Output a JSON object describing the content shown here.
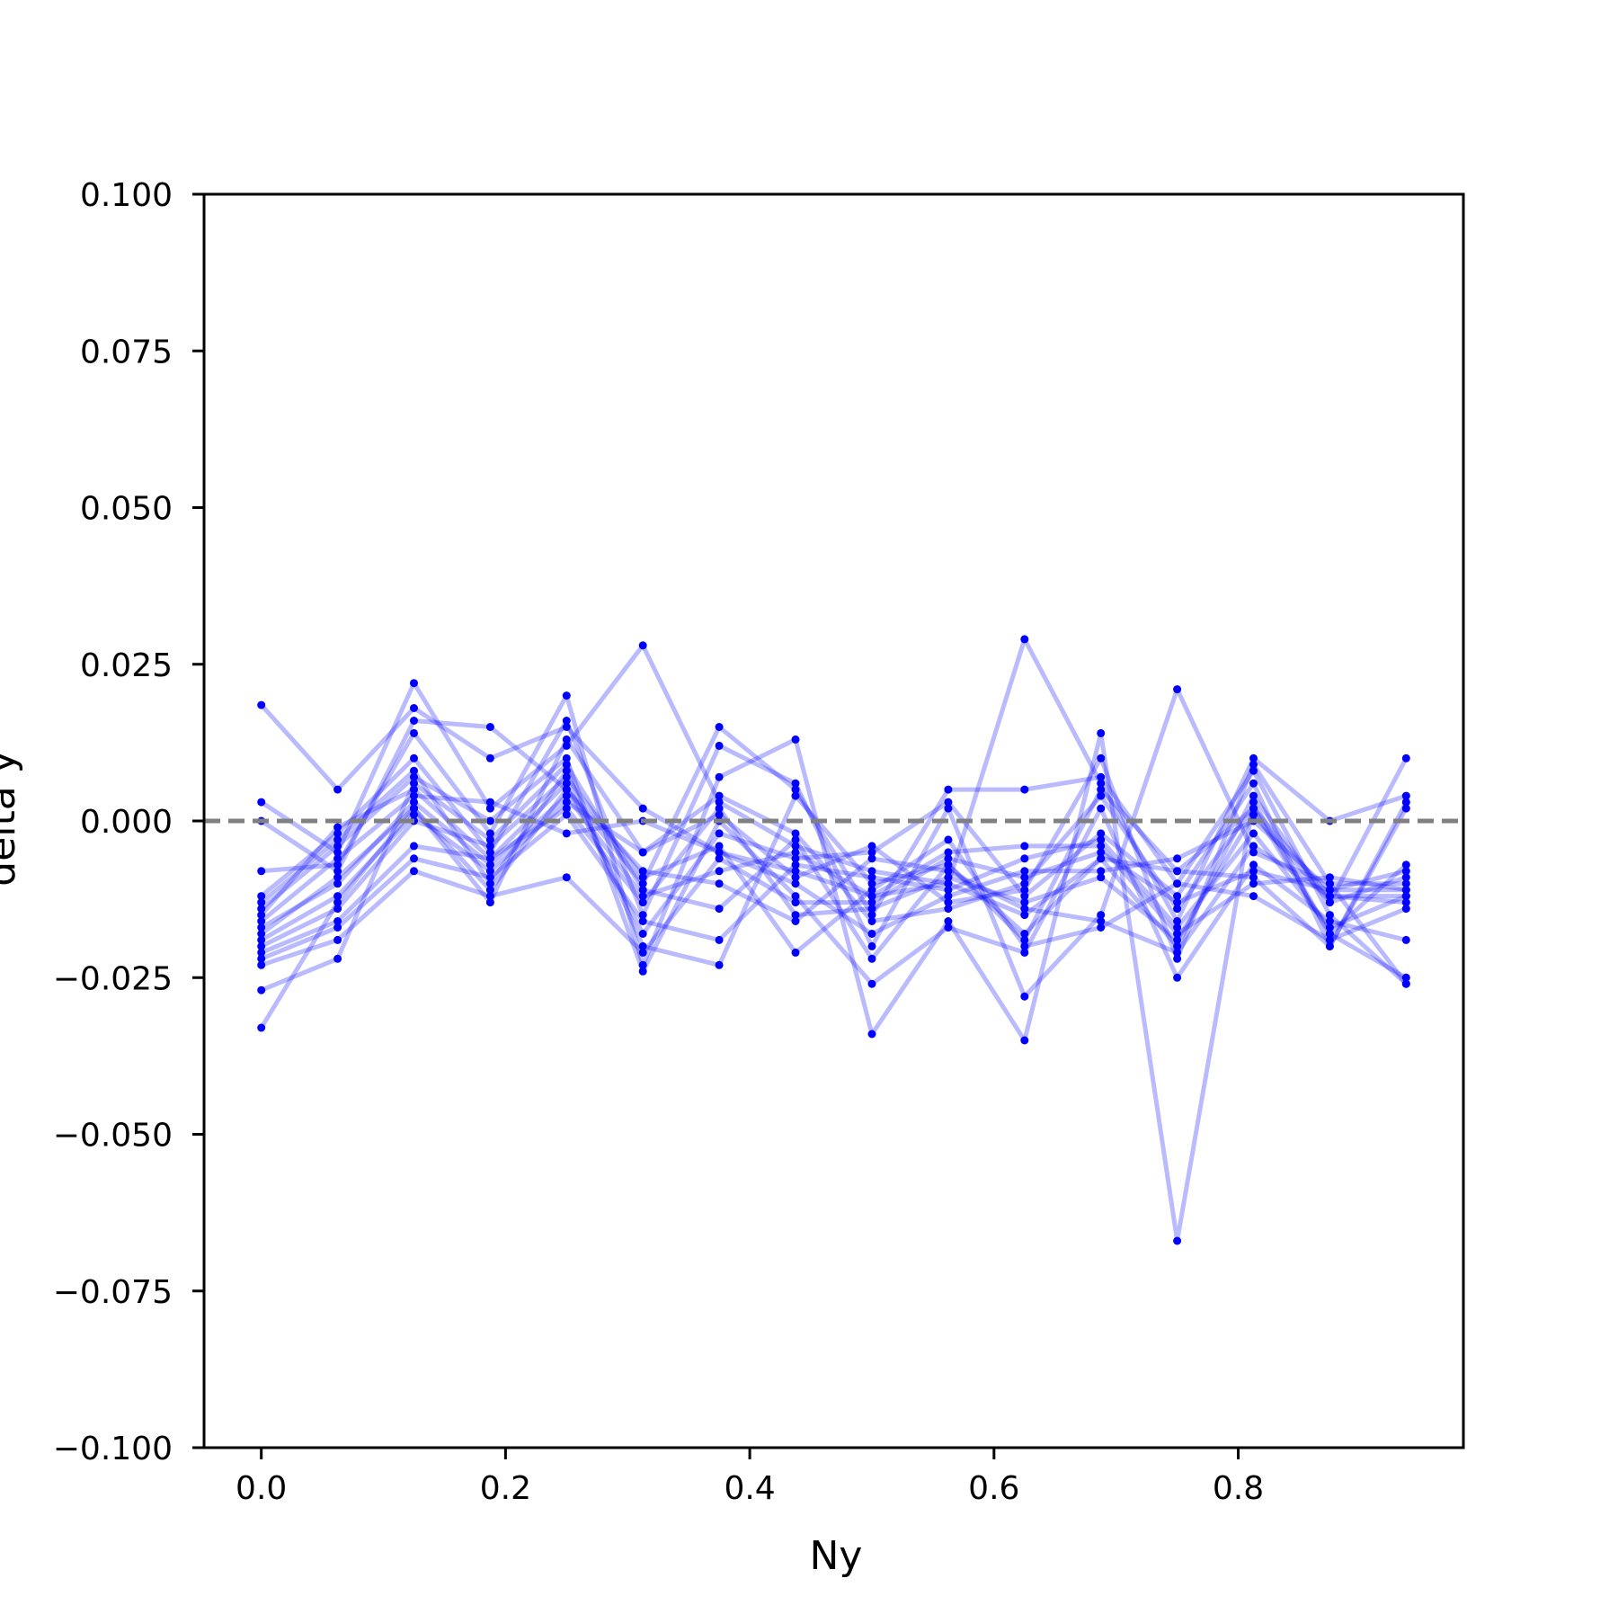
{
  "chart_data": {
    "type": "line",
    "title": "",
    "xlabel": "Ny",
    "ylabel": "delta y",
    "xlim": [
      -0.046875,
      0.984375
    ],
    "ylim": [
      -0.1,
      0.1
    ],
    "x_ticks": [
      0.0,
      0.2,
      0.4,
      0.6,
      0.8
    ],
    "x_tick_labels": [
      "0.0",
      "0.2",
      "0.4",
      "0.6",
      "0.8"
    ],
    "y_ticks": [
      0.1,
      0.075,
      0.05,
      0.025,
      0.0,
      -0.025,
      -0.05,
      -0.075,
      -0.1
    ],
    "y_tick_labels": [
      "0.100",
      "0.075",
      "0.050",
      "0.025",
      "0.000",
      "−0.025",
      "−0.050",
      "−0.075",
      "−0.100"
    ],
    "grid": false,
    "legend": "none",
    "reference_line": {
      "y": 0.0,
      "style": "dashed",
      "color": "#808080"
    },
    "series_color": "#0000ff",
    "x": [
      0.0,
      0.0625,
      0.125,
      0.1875,
      0.25,
      0.3125,
      0.375,
      0.4375,
      0.5,
      0.5625,
      0.625,
      0.6875,
      0.75,
      0.8125,
      0.875,
      0.9375
    ],
    "series": [
      {
        "values": [
          0.0185,
          0.005,
          0.018,
          0.01,
          0.015,
          0.002,
          -0.005,
          -0.008,
          -0.012,
          -0.01,
          -0.015,
          -0.006,
          -0.008,
          0.002,
          -0.012,
          -0.013
        ]
      },
      {
        "values": [
          0.003,
          -0.005,
          0.022,
          0.002,
          0.012,
          0.028,
          0.003,
          -0.004,
          -0.008,
          -0.01,
          0.029,
          0.006,
          -0.016,
          0.01,
          0.0,
          0.004
        ]
      },
      {
        "values": [
          0.0,
          -0.008,
          0.016,
          0.015,
          0.005,
          -0.01,
          0.015,
          0.005,
          -0.015,
          0.005,
          0.005,
          0.007,
          -0.01,
          0.008,
          -0.015,
          -0.026
        ]
      },
      {
        "values": [
          -0.008,
          -0.007,
          0.014,
          -0.002,
          0.02,
          -0.023,
          0.007,
          0.013,
          -0.034,
          -0.016,
          -0.035,
          0.014,
          -0.067,
          0.003,
          -0.018,
          -0.025
        ]
      },
      {
        "values": [
          -0.012,
          -0.002,
          0.01,
          -0.005,
          0.016,
          -0.015,
          0.012,
          0.006,
          -0.02,
          0.002,
          -0.028,
          -0.015,
          0.021,
          -0.005,
          -0.01,
          -0.01
        ]
      },
      {
        "values": [
          -0.013,
          -0.003,
          0.008,
          -0.01,
          0.008,
          -0.02,
          -0.023,
          0.004,
          -0.01,
          -0.007,
          -0.018,
          -0.006,
          -0.02,
          0.004,
          -0.013,
          0.01
        ]
      },
      {
        "values": [
          -0.014,
          -0.004,
          0.007,
          0.0,
          0.01,
          -0.024,
          0.0,
          -0.012,
          -0.026,
          -0.017,
          -0.021,
          0.002,
          -0.025,
          -0.007,
          -0.016,
          -0.019
        ]
      },
      {
        "values": [
          -0.015,
          -0.001,
          0.005,
          -0.006,
          0.006,
          -0.018,
          -0.002,
          -0.006,
          -0.005,
          0.003,
          -0.012,
          -0.002,
          -0.012,
          0.006,
          -0.02,
          0.002
        ]
      },
      {
        "values": [
          -0.016,
          -0.006,
          0.004,
          0.003,
          -0.002,
          0.0,
          -0.005,
          -0.01,
          -0.018,
          -0.012,
          -0.008,
          -0.008,
          -0.006,
          0.0,
          -0.011,
          -0.008
        ]
      },
      {
        "values": [
          -0.017,
          -0.01,
          0.003,
          -0.007,
          0.004,
          -0.012,
          -0.008,
          -0.005,
          -0.012,
          -0.005,
          -0.004,
          -0.004,
          -0.018,
          -0.01,
          -0.009,
          -0.011
        ]
      },
      {
        "values": [
          -0.018,
          -0.009,
          0.002,
          -0.011,
          0.005,
          -0.008,
          -0.01,
          -0.016,
          -0.006,
          -0.008,
          -0.014,
          -0.016,
          -0.021,
          -0.004,
          -0.012,
          -0.012
        ]
      },
      {
        "values": [
          -0.019,
          -0.012,
          0.001,
          -0.008,
          0.003,
          -0.005,
          0.004,
          -0.002,
          -0.016,
          -0.014,
          -0.01,
          0.004,
          -0.014,
          0.002,
          -0.018,
          -0.007
        ]
      },
      {
        "values": [
          -0.02,
          -0.014,
          0.0,
          -0.004,
          0.007,
          -0.009,
          -0.004,
          -0.021,
          -0.011,
          -0.003,
          -0.02,
          -0.017,
          -0.01,
          -0.012,
          -0.019,
          -0.014
        ]
      },
      {
        "values": [
          -0.021,
          -0.016,
          -0.004,
          -0.006,
          0.002,
          -0.013,
          0.002,
          -0.015,
          -0.014,
          -0.009,
          -0.013,
          -0.009,
          -0.019,
          0.001,
          -0.013,
          -0.009
        ]
      },
      {
        "values": [
          -0.022,
          -0.017,
          -0.006,
          -0.009,
          0.001,
          -0.016,
          -0.019,
          -0.007,
          -0.009,
          -0.011,
          -0.006,
          -0.003,
          -0.017,
          -0.002,
          -0.017,
          -0.012
        ]
      },
      {
        "values": [
          -0.023,
          -0.019,
          -0.008,
          -0.012,
          -0.009,
          -0.021,
          -0.006,
          -0.013,
          -0.013,
          -0.006,
          -0.009,
          -0.005,
          -0.013,
          -0.008,
          -0.011,
          -0.011
        ]
      },
      {
        "values": [
          -0.027,
          -0.022,
          0.006,
          -0.003,
          0.009,
          -0.011,
          -0.014,
          -0.003,
          -0.022,
          -0.007,
          -0.019,
          0.005,
          -0.008,
          -0.009,
          -0.02,
          0.003
        ]
      },
      {
        "values": [
          -0.033,
          -0.013,
          0.002,
          -0.013,
          0.013,
          -0.005,
          0.001,
          -0.009,
          -0.004,
          -0.013,
          -0.011,
          0.01,
          -0.022,
          0.009,
          -0.01,
          -0.026
        ]
      }
    ]
  }
}
